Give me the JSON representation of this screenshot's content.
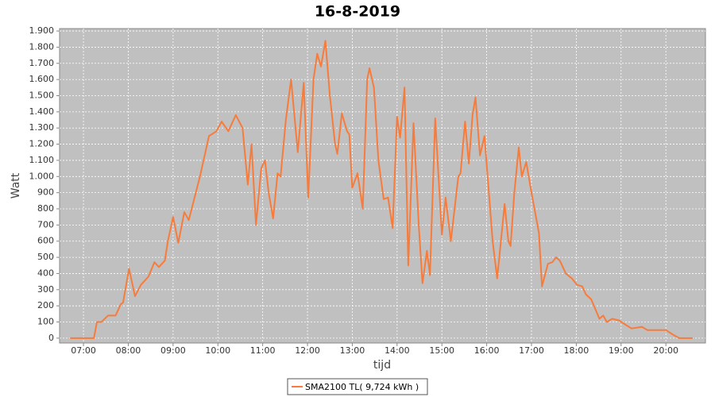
{
  "chart_data": {
    "type": "line",
    "title": "16-8-2019",
    "x_label": "tijd",
    "y_label": "Watt",
    "x": [
      "06:42",
      "07:14",
      "07:18",
      "07:24",
      "07:33",
      "07:43",
      "07:50",
      "07:53",
      "08:01",
      "08:09",
      "08:17",
      "08:27",
      "08:35",
      "08:41",
      "08:49",
      "08:53",
      "09:00",
      "09:07",
      "09:15",
      "09:21",
      "09:36",
      "09:48",
      "09:58",
      "10:05",
      "10:14",
      "10:24",
      "10:33",
      "10:40",
      "10:45",
      "10:51",
      "10:58",
      "11:03",
      "11:08",
      "11:14",
      "11:20",
      "11:24",
      "11:31",
      "11:38",
      "11:44",
      "11:47",
      "11:55",
      "12:01",
      "12:08",
      "12:13",
      "12:18",
      "12:24",
      "12:30",
      "12:37",
      "12:40",
      "12:46",
      "12:53",
      "12:56",
      "13:00",
      "13:07",
      "13:14",
      "13:20",
      "13:23",
      "13:29",
      "13:35",
      "13:42",
      "13:48",
      "13:54",
      "14:00",
      "14:04",
      "14:10",
      "14:15",
      "14:22",
      "14:29",
      "14:34",
      "14:40",
      "14:44",
      "14:51",
      "15:00",
      "15:05",
      "15:12",
      "15:22",
      "15:25",
      "15:31",
      "15:36",
      "15:41",
      "15:45",
      "15:51",
      "15:57",
      "16:03",
      "16:08",
      "16:14",
      "16:19",
      "16:24",
      "16:29",
      "16:32",
      "16:37",
      "16:43",
      "16:47",
      "16:53",
      "16:57",
      "17:00",
      "17:10",
      "17:14",
      "17:22",
      "17:28",
      "17:33",
      "17:38",
      "17:46",
      "17:54",
      "18:01",
      "18:08",
      "18:13",
      "18:20",
      "18:31",
      "18:36",
      "18:41",
      "18:48",
      "18:57",
      "19:07",
      "19:14",
      "19:28",
      "19:35",
      "20:00",
      "20:10",
      "20:18",
      "20:36"
    ],
    "series": [
      {
        "name": "SMA2100 TL( 9,724 kWh )",
        "color": "#f77c3c",
        "values": [
          0,
          0,
          100,
          100,
          140,
          140,
          210,
          220,
          430,
          260,
          330,
          380,
          470,
          440,
          480,
          600,
          750,
          590,
          780,
          730,
          1000,
          1250,
          1280,
          1340,
          1280,
          1380,
          1300,
          950,
          1200,
          700,
          1050,
          1100,
          900,
          740,
          1020,
          1000,
          1350,
          1600,
          1300,
          1150,
          1580,
          870,
          1600,
          1760,
          1680,
          1840,
          1500,
          1200,
          1140,
          1390,
          1280,
          1260,
          930,
          1020,
          800,
          1600,
          1670,
          1550,
          1100,
          860,
          870,
          680,
          1370,
          1240,
          1550,
          450,
          1330,
          700,
          340,
          540,
          390,
          1360,
          640,
          870,
          600,
          1000,
          1020,
          1340,
          1080,
          1380,
          1490,
          1130,
          1250,
          900,
          600,
          370,
          600,
          830,
          600,
          570,
          900,
          1180,
          1000,
          1090,
          980,
          900,
          650,
          320,
          460,
          470,
          500,
          480,
          400,
          370,
          330,
          320,
          270,
          240,
          120,
          140,
          100,
          120,
          110,
          80,
          60,
          70,
          50,
          50,
          20,
          0,
          0
        ]
      }
    ],
    "xlim": [
      "06:28",
      "20:53"
    ],
    "xticks": [
      "07:00",
      "08:00",
      "09:00",
      "10:00",
      "11:00",
      "12:00",
      "13:00",
      "14:00",
      "15:00",
      "16:00",
      "17:00",
      "18:00",
      "19:00",
      "20:00"
    ],
    "ylim": [
      -30,
      1915
    ],
    "yticks": [
      0,
      100,
      200,
      300,
      400,
      500,
      600,
      700,
      800,
      900,
      {
        "value": 1000,
        "label": "1.000"
      },
      {
        "value": 1100,
        "label": "1.100"
      },
      {
        "value": 1200,
        "label": "1.200"
      },
      {
        "value": 1300,
        "label": "1.300"
      },
      {
        "value": 1400,
        "label": "1.400"
      },
      {
        "value": 1500,
        "label": "1.500"
      },
      {
        "value": 1600,
        "label": "1.600"
      },
      {
        "value": 1700,
        "label": "1.700"
      },
      {
        "value": 1800,
        "label": "1.800"
      },
      {
        "value": 1900,
        "label": "1.900"
      }
    ],
    "grid": true
  }
}
